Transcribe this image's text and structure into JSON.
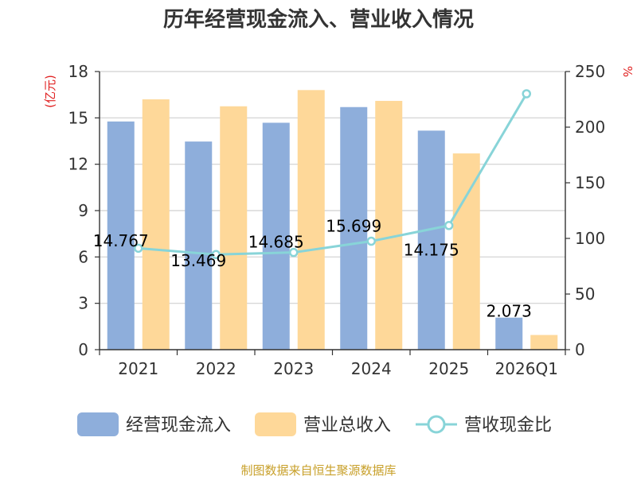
{
  "chart_data": {
    "type": "bar",
    "title": "历年经营现金流入、营业收入情况",
    "categories": [
      "2021",
      "2022",
      "2023",
      "2024",
      "2025",
      "2026Q1"
    ],
    "y_left": {
      "unit": "(亿元)",
      "range": [
        0,
        18
      ],
      "ticks": [
        "0",
        "3",
        "6",
        "9",
        "12",
        "15",
        "18"
      ]
    },
    "y_right": {
      "unit": "%",
      "range": [
        0,
        250
      ],
      "ticks": [
        "0",
        "50",
        "100",
        "150",
        "200",
        "250"
      ]
    },
    "series": [
      {
        "name": "经营现金流入",
        "type": "bar",
        "axis": "left",
        "color": "#8eaedb",
        "values": [
          14.767,
          13.469,
          14.685,
          15.699,
          14.175,
          2.073
        ],
        "labels": [
          "14.767",
          "13.469",
          "14.685",
          "15.699",
          "14.175",
          "2.073"
        ]
      },
      {
        "name": "营业总收入",
        "type": "bar",
        "axis": "left",
        "color": "#fed899",
        "values": [
          16.2,
          15.75,
          16.8,
          16.1,
          12.7,
          0.95
        ]
      },
      {
        "name": "营收现金比",
        "type": "line",
        "axis": "right",
        "color": "#88d4d8",
        "values": [
          91.2,
          85.5,
          87.4,
          97.5,
          111.6,
          230.0
        ]
      }
    ],
    "grid": true,
    "legend_position": "bottom"
  },
  "footer": {
    "source": "制图数据来自恒生聚源数据库"
  }
}
